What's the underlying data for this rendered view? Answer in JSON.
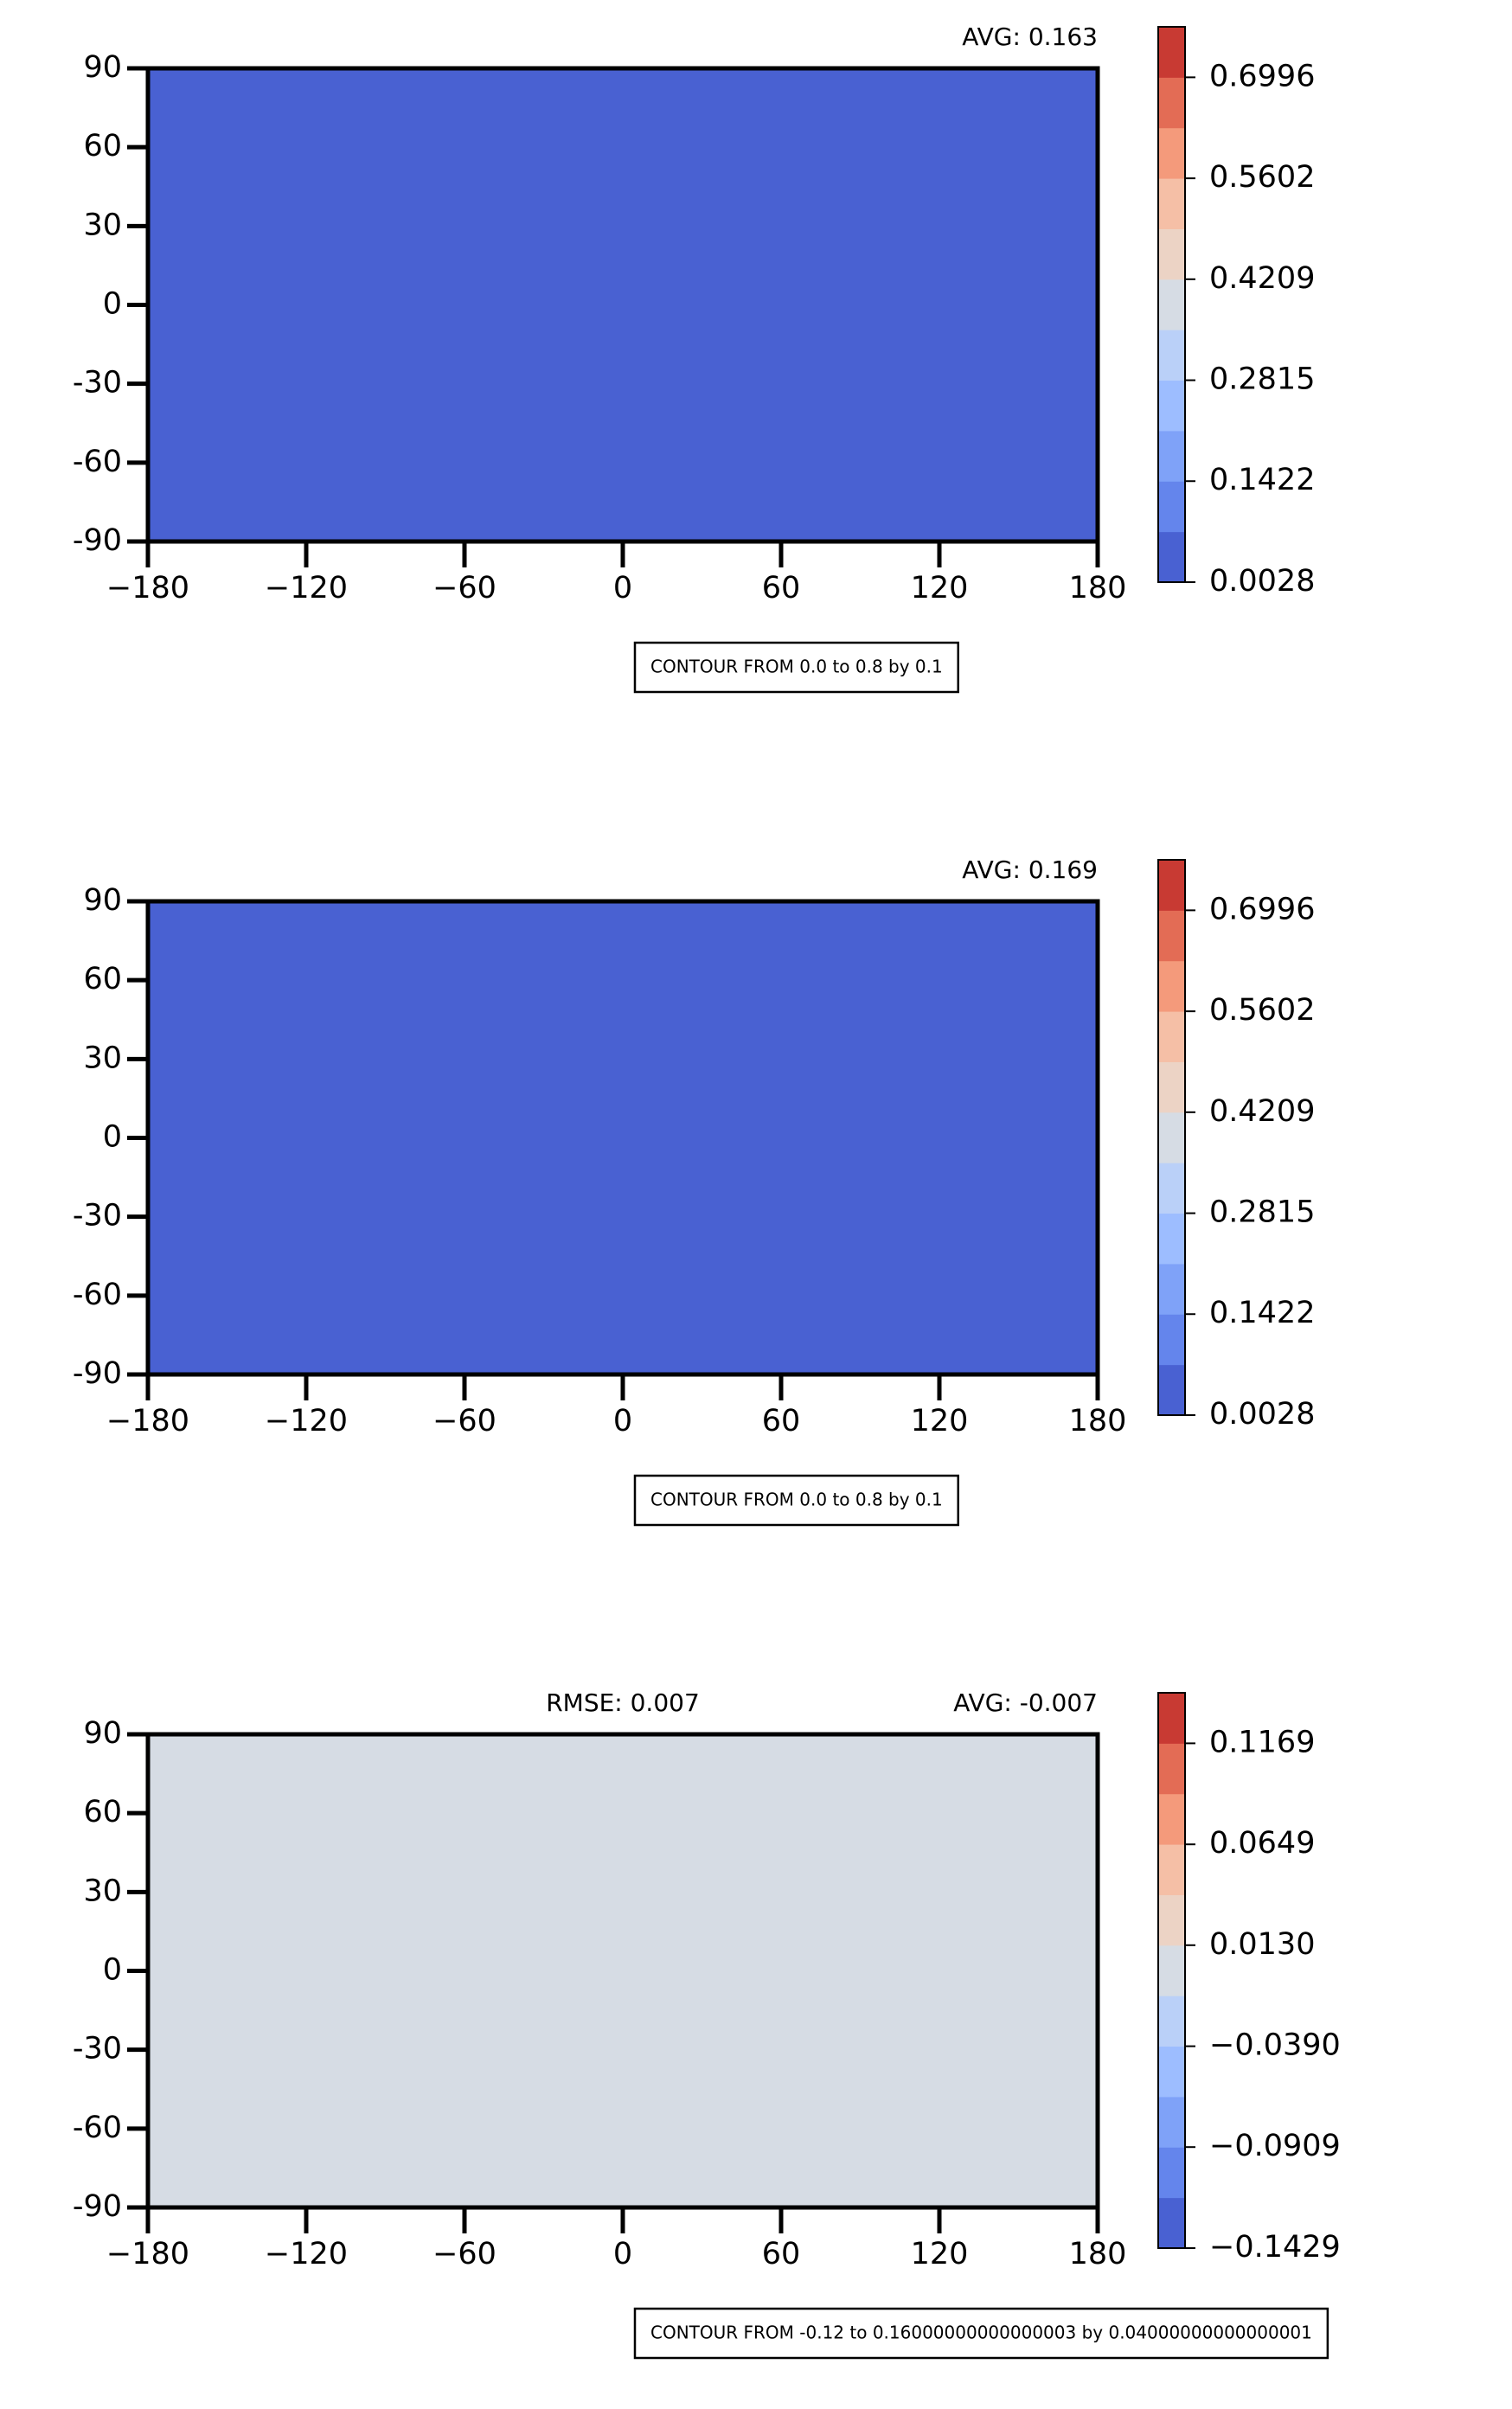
{
  "chart_data": [
    {
      "type": "contour",
      "avg_label": "AVG: 0.163",
      "note": "CONTOUR FROM 0.0 to 0.8 by 0.1",
      "xlim": [
        -180,
        180
      ],
      "xticks": [
        {
          "value": -180,
          "label": "−180"
        },
        {
          "value": -120,
          "label": "−120"
        },
        {
          "value": -60,
          "label": "−60"
        },
        0,
        60,
        120,
        180
      ],
      "ylim": [
        -90,
        90
      ],
      "yticks": [
        {
          "value": -90,
          "label": "-90"
        },
        {
          "value": -60,
          "label": "-60"
        },
        {
          "value": -30,
          "label": "-30"
        },
        0,
        30,
        60,
        90
      ],
      "colorbar": {
        "lim": [
          0.0028,
          0.7693
        ],
        "ticks": [
          0.0028,
          0.1422,
          0.2815,
          0.4209,
          0.5602,
          0.6996
        ],
        "colors": [
          "#4961d2",
          "#6485ec",
          "#7fa2f8",
          "#9dbdff",
          "#bad0f8",
          "#d6dce4",
          "#ecd3c5",
          "#f5bfa6",
          "#f49a7b",
          "#e36c55",
          "#c83a33"
        ]
      }
    },
    {
      "type": "contour",
      "avg_label": "AVG: 0.169",
      "note": "CONTOUR FROM 0.0 to 0.8 by 0.1",
      "xlim": [
        -180,
        180
      ],
      "xticks": [
        {
          "value": -180,
          "label": "−180"
        },
        {
          "value": -120,
          "label": "−120"
        },
        {
          "value": -60,
          "label": "−60"
        },
        0,
        60,
        120,
        180
      ],
      "ylim": [
        -90,
        90
      ],
      "yticks": [
        {
          "value": -90,
          "label": "-90"
        },
        {
          "value": -60,
          "label": "-60"
        },
        {
          "value": -30,
          "label": "-30"
        },
        0,
        30,
        60,
        90
      ],
      "colorbar": {
        "lim": [
          0.0028,
          0.7693
        ],
        "ticks": [
          0.0028,
          0.1422,
          0.2815,
          0.4209,
          0.5602,
          0.6996
        ],
        "colors": [
          "#4961d2",
          "#6485ec",
          "#7fa2f8",
          "#9dbdff",
          "#bad0f8",
          "#d6dce4",
          "#ecd3c5",
          "#f5bfa6",
          "#f49a7b",
          "#e36c55",
          "#c83a33"
        ]
      }
    },
    {
      "type": "contour",
      "rmse_label": "RMSE: 0.007",
      "avg_label": "AVG: -0.007",
      "note": "CONTOUR FROM -0.12 to 0.16000000000000003 by 0.04000000000000001",
      "xlim": [
        -180,
        180
      ],
      "xticks": [
        {
          "value": -180,
          "label": "−180"
        },
        {
          "value": -120,
          "label": "−120"
        },
        {
          "value": -60,
          "label": "−60"
        },
        0,
        60,
        120,
        180
      ],
      "ylim": [
        -90,
        90
      ],
      "yticks": [
        {
          "value": -90,
          "label": "-90"
        },
        {
          "value": -60,
          "label": "-60"
        },
        {
          "value": -30,
          "label": "-30"
        },
        0,
        30,
        60,
        90
      ],
      "colorbar": {
        "lim": [
          -0.1429,
          0.1429
        ],
        "ticks": [
          {
            "value": -0.1429,
            "label": "−0.1429"
          },
          {
            "value": -0.0909,
            "label": "−0.0909"
          },
          {
            "value": -0.039,
            "label": "−0.0390"
          },
          {
            "value": 0.013,
            "label": "0.0130"
          },
          {
            "value": 0.0649,
            "label": "0.0649"
          },
          0.1169
        ],
        "colors": [
          "#4961d2",
          "#6485ec",
          "#7fa2f8",
          "#9dbdff",
          "#bad0f8",
          "#d6dce4",
          "#ecd3c5",
          "#f5bfa6",
          "#f49a7b",
          "#e36c55",
          "#c83a33"
        ]
      }
    }
  ]
}
